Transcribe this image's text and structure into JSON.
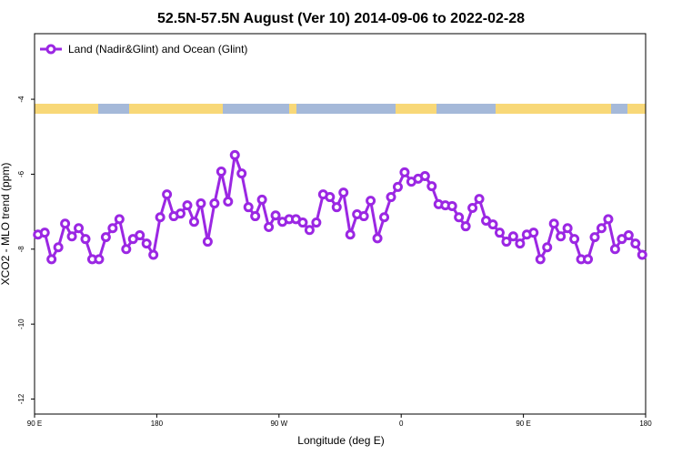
{
  "chart_data": {
    "type": "line",
    "title": "52.5N-57.5N August (Ver 10)   2014-09-06 to 2022-02-28",
    "x_label": "Longitude (deg E)",
    "y_label": "XCO2 - MLO trend (ppm)",
    "legend": "upper left",
    "x": [
      92.5,
      97.5,
      102.5,
      107.5,
      112.5,
      117.5,
      122.5,
      127.5,
      132.5,
      137.5,
      142.5,
      147.5,
      152.5,
      157.5,
      162.5,
      167.5,
      172.5,
      177.5,
      182.5,
      187.5,
      192.5,
      197.5,
      202.5,
      207.5,
      212.5,
      217.5,
      222.5,
      227.5,
      232.5,
      237.5,
      242.5,
      247.5,
      252.5,
      257.5,
      262.5,
      267.5,
      272.5,
      277.5,
      282.5,
      287.5,
      292.5,
      297.5,
      302.5,
      307.5,
      312.5,
      317.5,
      322.5,
      327.5,
      332.5,
      337.5,
      342.5,
      347.5,
      352.5,
      357.5,
      362.5,
      367.5,
      372.5,
      377.5,
      382.5,
      387.5,
      392.5,
      397.5,
      402.5,
      407.5,
      412.5,
      417.5,
      422.5,
      427.5,
      432.5,
      437.5,
      442.5,
      447.5,
      452.5,
      457.5,
      462.5,
      467.5,
      472.5,
      477.5,
      482.5,
      487.5,
      492.5,
      497.5,
      502.5,
      507.5,
      512.5,
      517.5,
      522.5,
      527.5,
      532.5,
      537.5
    ],
    "series": [
      {
        "name": "Land (Nadir&Glint) and Ocean (Glint)",
        "color": "#9b27e3",
        "values": [
          -7.61,
          -7.56,
          -8.27,
          -7.95,
          -7.32,
          -7.66,
          -7.44,
          -7.73,
          -8.27,
          -8.27,
          -7.68,
          -7.44,
          -7.2,
          -8.0,
          -7.73,
          -7.63,
          -7.85,
          -8.15,
          -7.15,
          -6.54,
          -7.12,
          -7.05,
          -6.83,
          -7.27,
          -6.78,
          -7.8,
          -6.78,
          -5.93,
          -6.73,
          -5.49,
          -5.98,
          -6.88,
          -7.12,
          -6.68,
          -7.41,
          -7.1,
          -7.27,
          -7.2,
          -7.2,
          -7.29,
          -7.49,
          -7.29,
          -6.54,
          -6.61,
          -6.88,
          -6.49,
          -7.61,
          -7.07,
          -7.12,
          -6.71,
          -7.71,
          -7.15,
          -6.61,
          -6.34,
          -5.95,
          -6.2,
          -6.12,
          -6.05,
          -6.32,
          -6.8,
          -6.83,
          -6.85,
          -7.15,
          -7.39,
          -6.9,
          -6.66,
          -7.24,
          -7.34,
          -7.56,
          -7.8,
          -7.66,
          -7.85,
          -7.61,
          -7.56,
          -8.27,
          -7.95,
          -7.32,
          -7.66,
          -7.44,
          -7.73,
          -8.27,
          -8.27,
          -7.68,
          -7.44,
          -7.2,
          -8.0,
          -7.73,
          -7.63,
          -7.85,
          -8.15
        ]
      }
    ],
    "xlim": [
      90,
      540
    ],
    "xticks": [
      {
        "value": 90,
        "label": "90 E"
      },
      180,
      {
        "value": 270,
        "label": "90 W"
      },
      {
        "value": 360,
        "label": "0"
      },
      {
        "value": 450,
        "label": "90 E"
      },
      {
        "value": 540,
        "label": "180"
      }
    ],
    "ylim": [
      -12.4,
      -2.25
    ],
    "yticks": [
      -4,
      -6,
      -8,
      -10,
      -12
    ]
  }
}
